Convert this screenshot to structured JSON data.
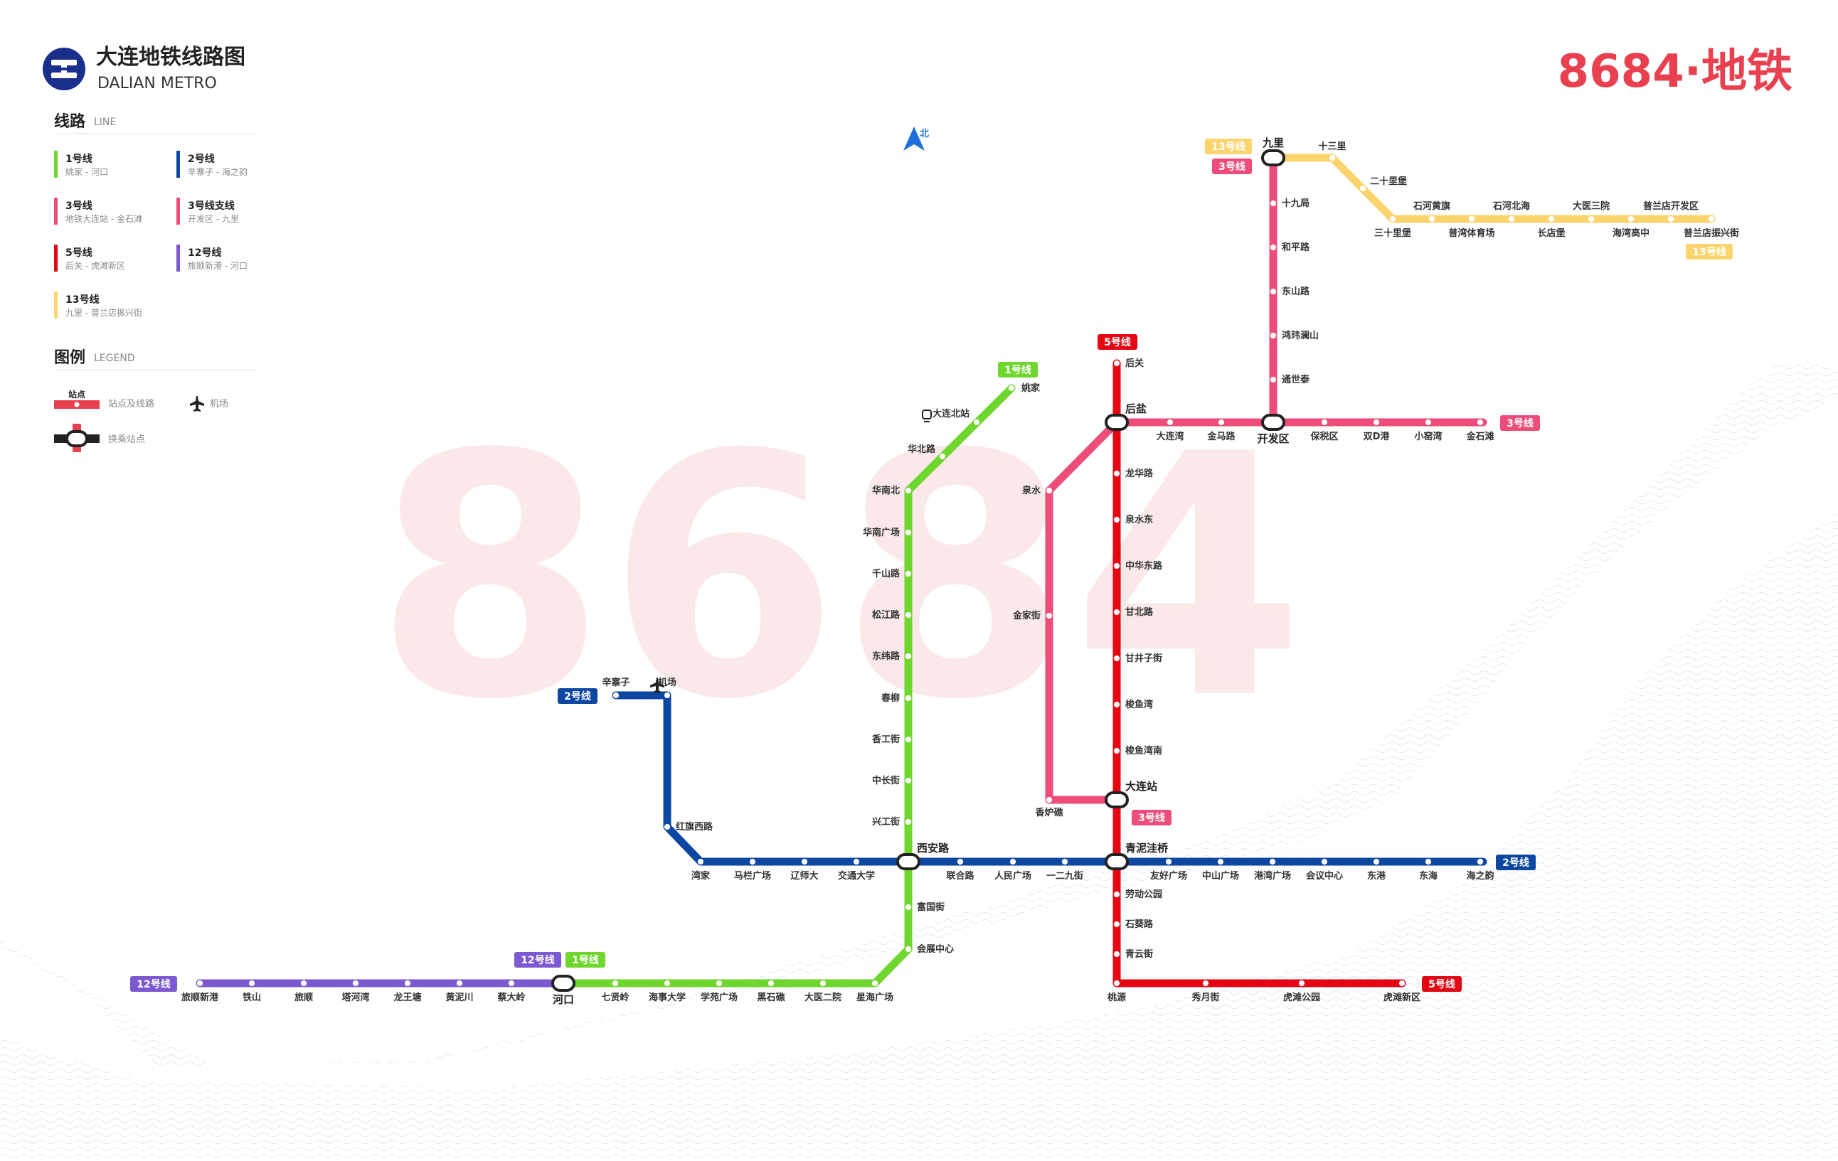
{
  "header": {
    "title": "大连地铁线路图",
    "subtitle": "DALIAN METRO",
    "brand": "8684·地铁",
    "brand_color": "#e8404f",
    "watermark": "8684",
    "north": "北"
  },
  "panel": {
    "lines_heading": "线路",
    "lines_heading_en": "LINE",
    "legend_heading": "图例",
    "legend_heading_en": "LEGEND",
    "lines": [
      {
        "name": "1号线",
        "desc": "姚家 - 河口",
        "color": "#6fd62d"
      },
      {
        "name": "2号线",
        "desc": "辛寨子 - 海之韵",
        "color": "#0d47a1"
      },
      {
        "name": "3号线",
        "desc": "地铁大连站 - 金石滩",
        "color": "#ef4d79"
      },
      {
        "name": "3号线支线",
        "desc": "开发区 - 九里",
        "color": "#ef4d79"
      },
      {
        "name": "5号线",
        "desc": "后关 - 虎滩新区",
        "color": "#e30613"
      },
      {
        "name": "12号线",
        "desc": "旅顺新港 - 河口",
        "color": "#7c58d1"
      },
      {
        "name": "13号线",
        "desc": "九里 - 普兰店振兴街",
        "color": "#fbd46d"
      }
    ],
    "legend": {
      "station_tag": "站点",
      "station_label": "站点及线路",
      "airport_label": "机场",
      "transfer_label": "换乘站点"
    }
  },
  "chart_data": {
    "type": "metro-map",
    "lines": [
      {
        "id": "L1",
        "name": "1号线",
        "color": "#6fd62d",
        "stations": [
          "姚家",
          "大连北站",
          "华北路",
          "华南北",
          "华南广场",
          "千山路",
          "松江路",
          "东纬路",
          "春柳",
          "香工街",
          "中长街",
          "兴工街",
          "西安路",
          "富国街",
          "会展中心",
          "星海广场",
          "大医二院",
          "黑石礁",
          "学苑广场",
          "海事大学",
          "七贤岭",
          "河口"
        ]
      },
      {
        "id": "L2",
        "name": "2号线",
        "color": "#0d47a1",
        "stations": [
          "辛寨子",
          "机场",
          "红旗西路",
          "湾家",
          "马栏广场",
          "辽师大",
          "交通大学",
          "西安路",
          "联合路",
          "人民广场",
          "一二九街",
          "青泥洼桥",
          "友好广场",
          "中山广场",
          "港湾广场",
          "会议中心",
          "东港",
          "东海",
          "海之韵"
        ]
      },
      {
        "id": "L3",
        "name": "3号线",
        "color": "#ef4d79",
        "stations": [
          "大连站",
          "香炉礁",
          "金家街",
          "泉水",
          "后盐",
          "大连湾",
          "金马路",
          "开发区",
          "保税区",
          "双D港",
          "小窑湾",
          "金石滩"
        ]
      },
      {
        "id": "L3B",
        "name": "3号线支线",
        "color": "#ef4d79",
        "stations": [
          "开发区",
          "通世泰",
          "鸿玮澜山",
          "东山路",
          "和平路",
          "十九局",
          "九里"
        ]
      },
      {
        "id": "L5",
        "name": "5号线",
        "color": "#e30613",
        "stations": [
          "后关",
          "后盐",
          "龙华路",
          "泉水东",
          "中华东路",
          "甘北路",
          "甘井子街",
          "梭鱼湾",
          "梭鱼湾南",
          "大连站",
          "青泥洼桥",
          "劳动公园",
          "石葵路",
          "青云街",
          "桃源",
          "秀月街",
          "虎滩公园",
          "虎滩新区"
        ]
      },
      {
        "id": "L12",
        "name": "12号线",
        "color": "#7c58d1",
        "stations": [
          "旅顺新港",
          "铁山",
          "旅顺",
          "塔河湾",
          "龙王塘",
          "黄泥川",
          "蔡大岭",
          "河口"
        ]
      },
      {
        "id": "L13",
        "name": "13号线",
        "color": "#fbd46d",
        "stations": [
          "九里",
          "十三里",
          "二十里堡",
          "三十里堡",
          "石河黄旗",
          "普湾体育场",
          "石河北海",
          "长店堡",
          "大医三院",
          "海湾高中",
          "普兰店开发区",
          "普兰店振兴街"
        ]
      }
    ],
    "badges": {
      "b1": "1号线",
      "b2": "2号线",
      "b3": "3号线",
      "b5": "5号线",
      "b12": "12号线",
      "b13": "13号线"
    },
    "labels": {
      "uni": "大学"
    }
  }
}
